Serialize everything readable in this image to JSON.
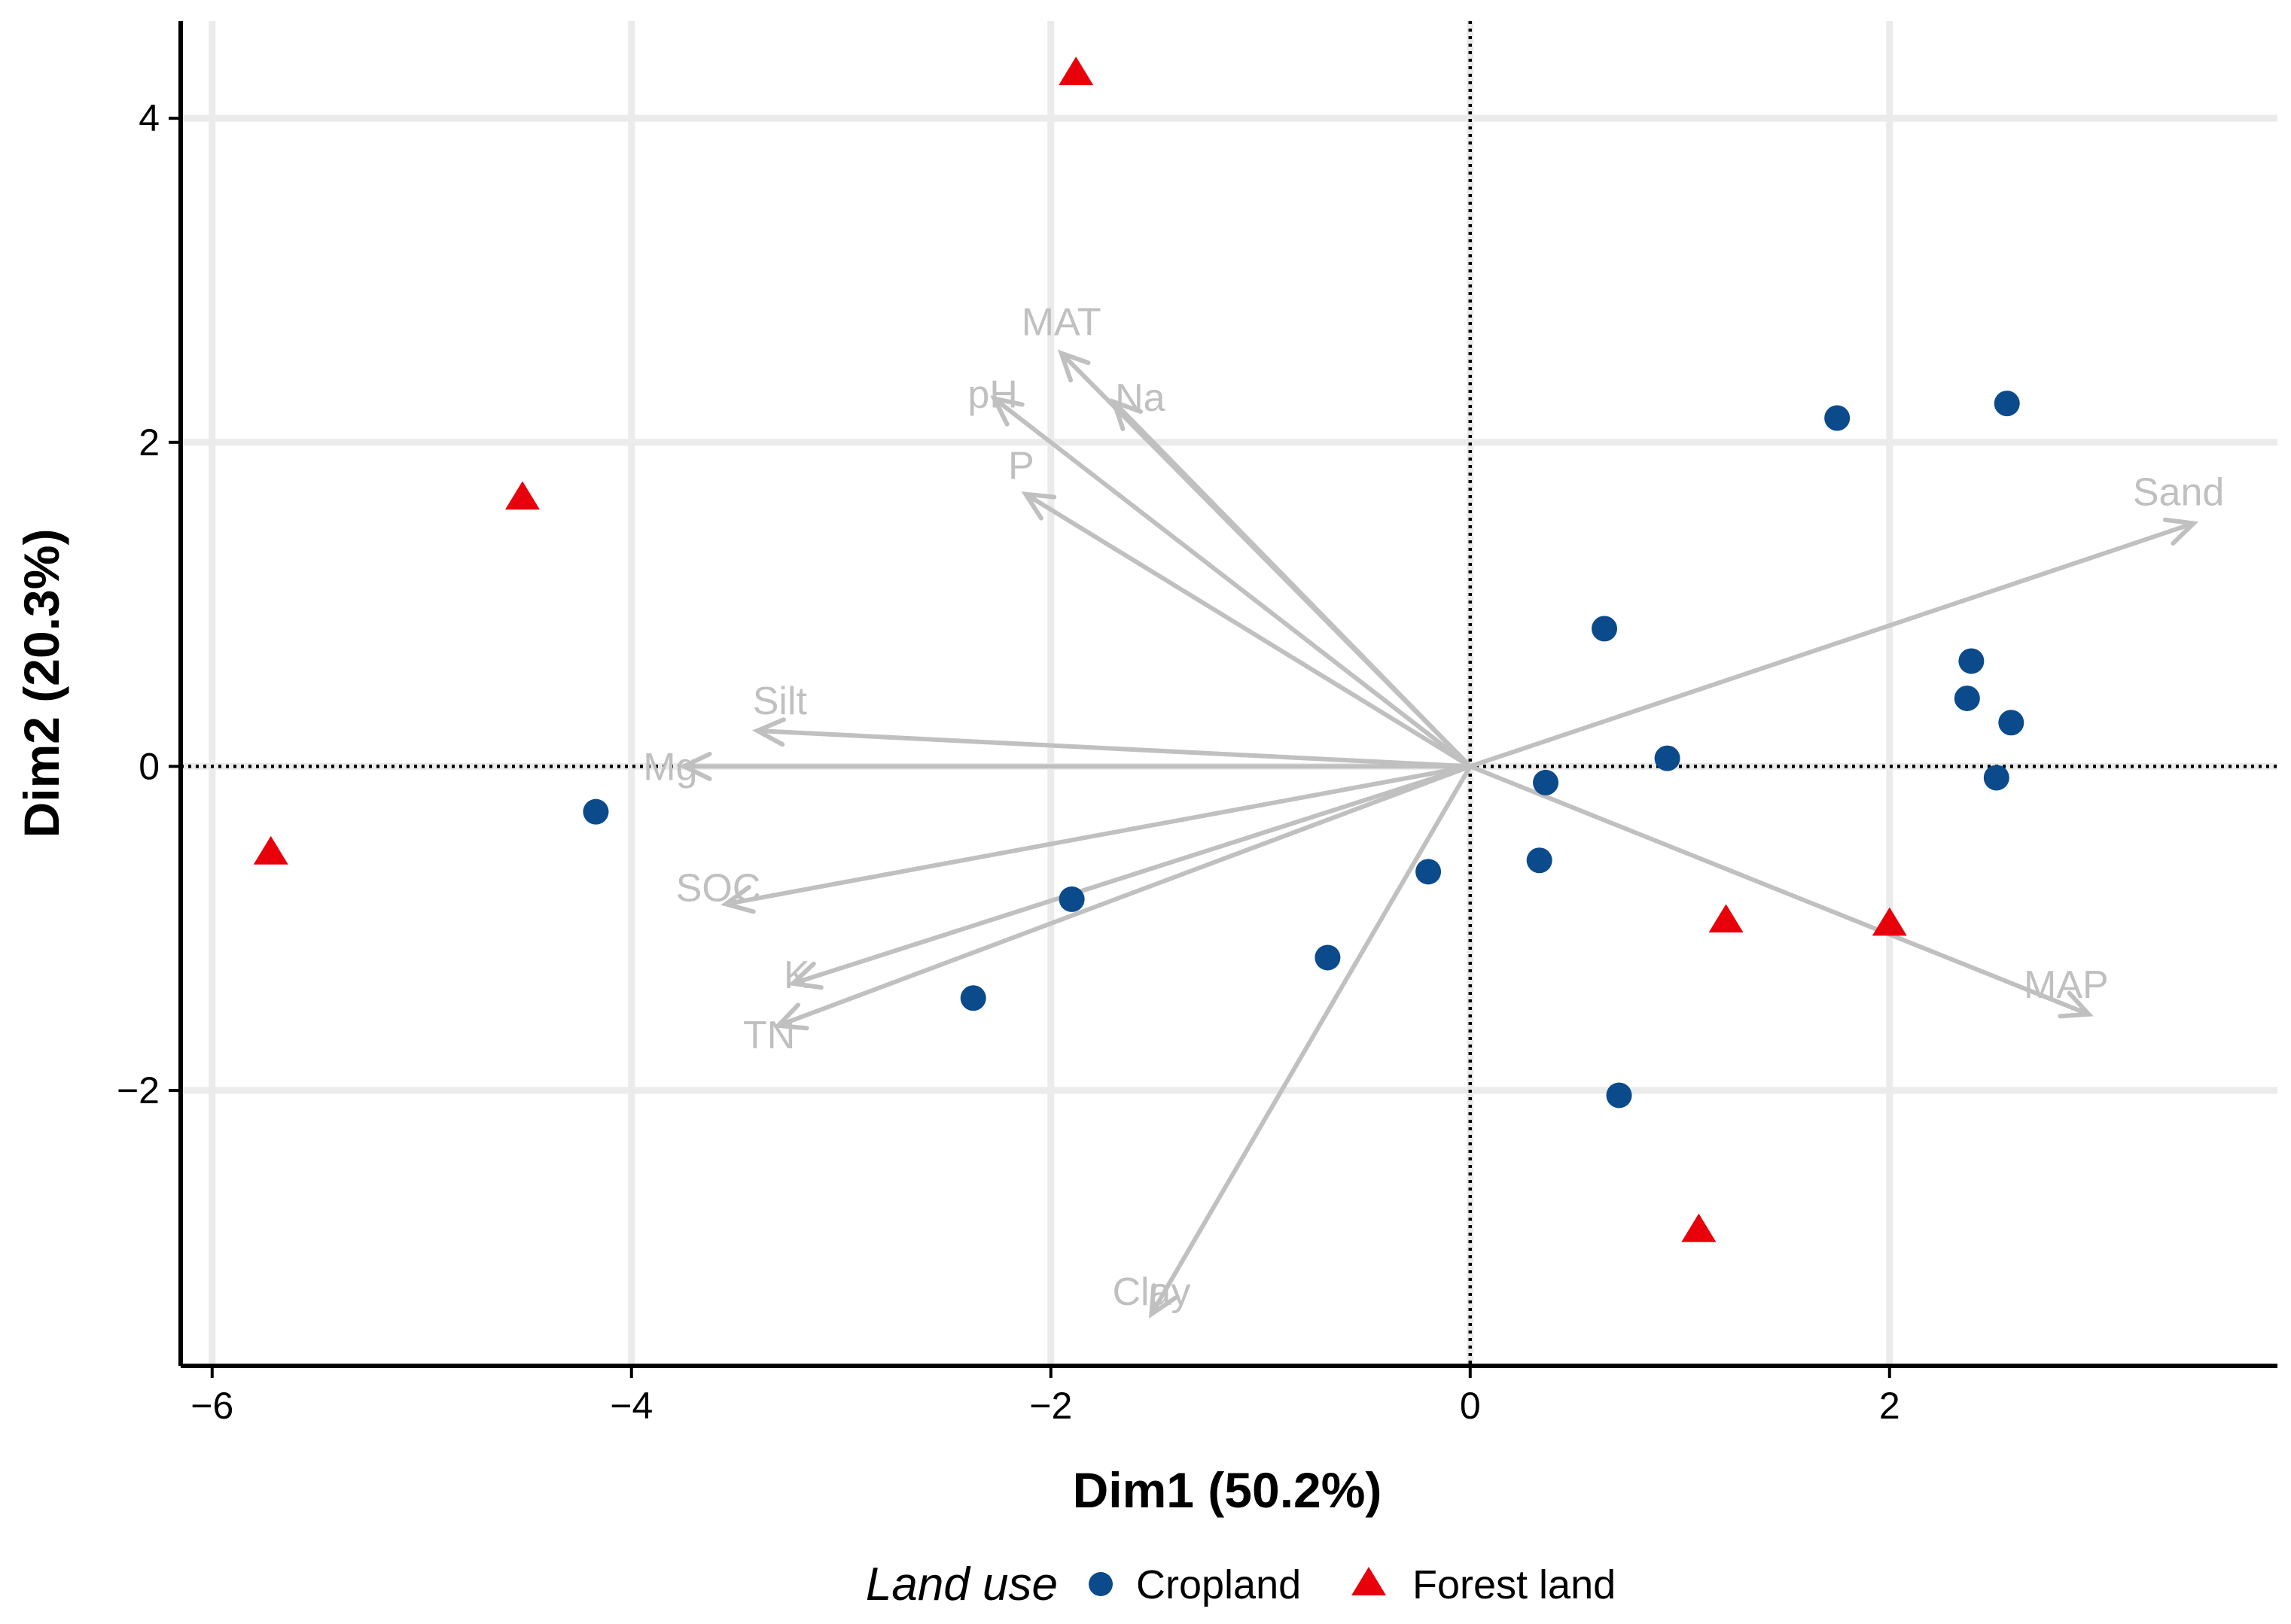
{
  "chart_data": {
    "type": "scatter",
    "subtype": "pca-biplot",
    "xlabel": "Dim1 (50.2%)",
    "ylabel": "Dim2 (20.3%)",
    "xlim": [
      -6.15,
      3.85
    ],
    "ylim": [
      -3.7,
      4.6
    ],
    "xticks": [
      -6,
      -4,
      -2,
      0,
      2
    ],
    "yticks": [
      -2,
      0,
      2,
      4
    ],
    "xtick_labels": [
      "−6",
      "−4",
      "−2",
      "0",
      "2"
    ],
    "ytick_labels": [
      "−2",
      "0",
      "2",
      "4"
    ],
    "grid": true,
    "reference_lines": {
      "x": 0,
      "y": 0,
      "style": "dotted"
    },
    "colors": {
      "Cropland": "#0b4a8b",
      "Forest land": "#e8000b",
      "vectors": "#c0c0c0",
      "grid": "#ebebeb"
    },
    "series": [
      {
        "name": "Cropland",
        "marker": "circle",
        "points": [
          {
            "x": -4.17,
            "y": -0.28
          },
          {
            "x": -2.37,
            "y": -1.43
          },
          {
            "x": -1.9,
            "y": -0.82
          },
          {
            "x": -0.68,
            "y": -1.18
          },
          {
            "x": -0.2,
            "y": -0.65
          },
          {
            "x": 0.33,
            "y": -0.58
          },
          {
            "x": 0.36,
            "y": -0.1
          },
          {
            "x": 0.64,
            "y": 0.85
          },
          {
            "x": 0.71,
            "y": -2.03
          },
          {
            "x": 0.94,
            "y": 0.05
          },
          {
            "x": 1.75,
            "y": 2.15
          },
          {
            "x": 2.37,
            "y": 0.42
          },
          {
            "x": 2.39,
            "y": 0.65
          },
          {
            "x": 2.51,
            "y": -0.07
          },
          {
            "x": 2.56,
            "y": 2.24
          },
          {
            "x": 2.58,
            "y": 0.27
          }
        ]
      },
      {
        "name": "Forest land",
        "marker": "triangle",
        "points": [
          {
            "x": -5.72,
            "y": -0.53
          },
          {
            "x": -4.52,
            "y": 1.66
          },
          {
            "x": -1.88,
            "y": 4.28
          },
          {
            "x": 1.09,
            "y": -2.86
          },
          {
            "x": 1.22,
            "y": -0.95
          },
          {
            "x": 2.0,
            "y": -0.97
          }
        ]
      }
    ],
    "vectors": [
      {
        "name": "MAT",
        "x": -1.95,
        "y": 2.55
      },
      {
        "name": "Na",
        "x": -1.7,
        "y": 2.25
      },
      {
        "name": "pH",
        "x": -2.27,
        "y": 2.27
      },
      {
        "name": "P",
        "x": -2.12,
        "y": 1.68
      },
      {
        "name": "Sand",
        "x": 3.45,
        "y": 1.5
      },
      {
        "name": "Silt",
        "x": -3.4,
        "y": 0.22
      },
      {
        "name": "Mg",
        "x": -3.75,
        "y": 0.0
      },
      {
        "name": "SOC",
        "x": -3.55,
        "y": -0.85
      },
      {
        "name": "K",
        "x": -3.23,
        "y": -1.34
      },
      {
        "name": "TN",
        "x": -3.3,
        "y": -1.6
      },
      {
        "name": "MAP",
        "x": 2.95,
        "y": -1.53
      },
      {
        "name": "Clay",
        "x": -1.52,
        "y": -3.38
      }
    ],
    "legend": {
      "title": "Land use",
      "position": "bottom",
      "entries": [
        "Cropland",
        "Forest land"
      ]
    }
  }
}
